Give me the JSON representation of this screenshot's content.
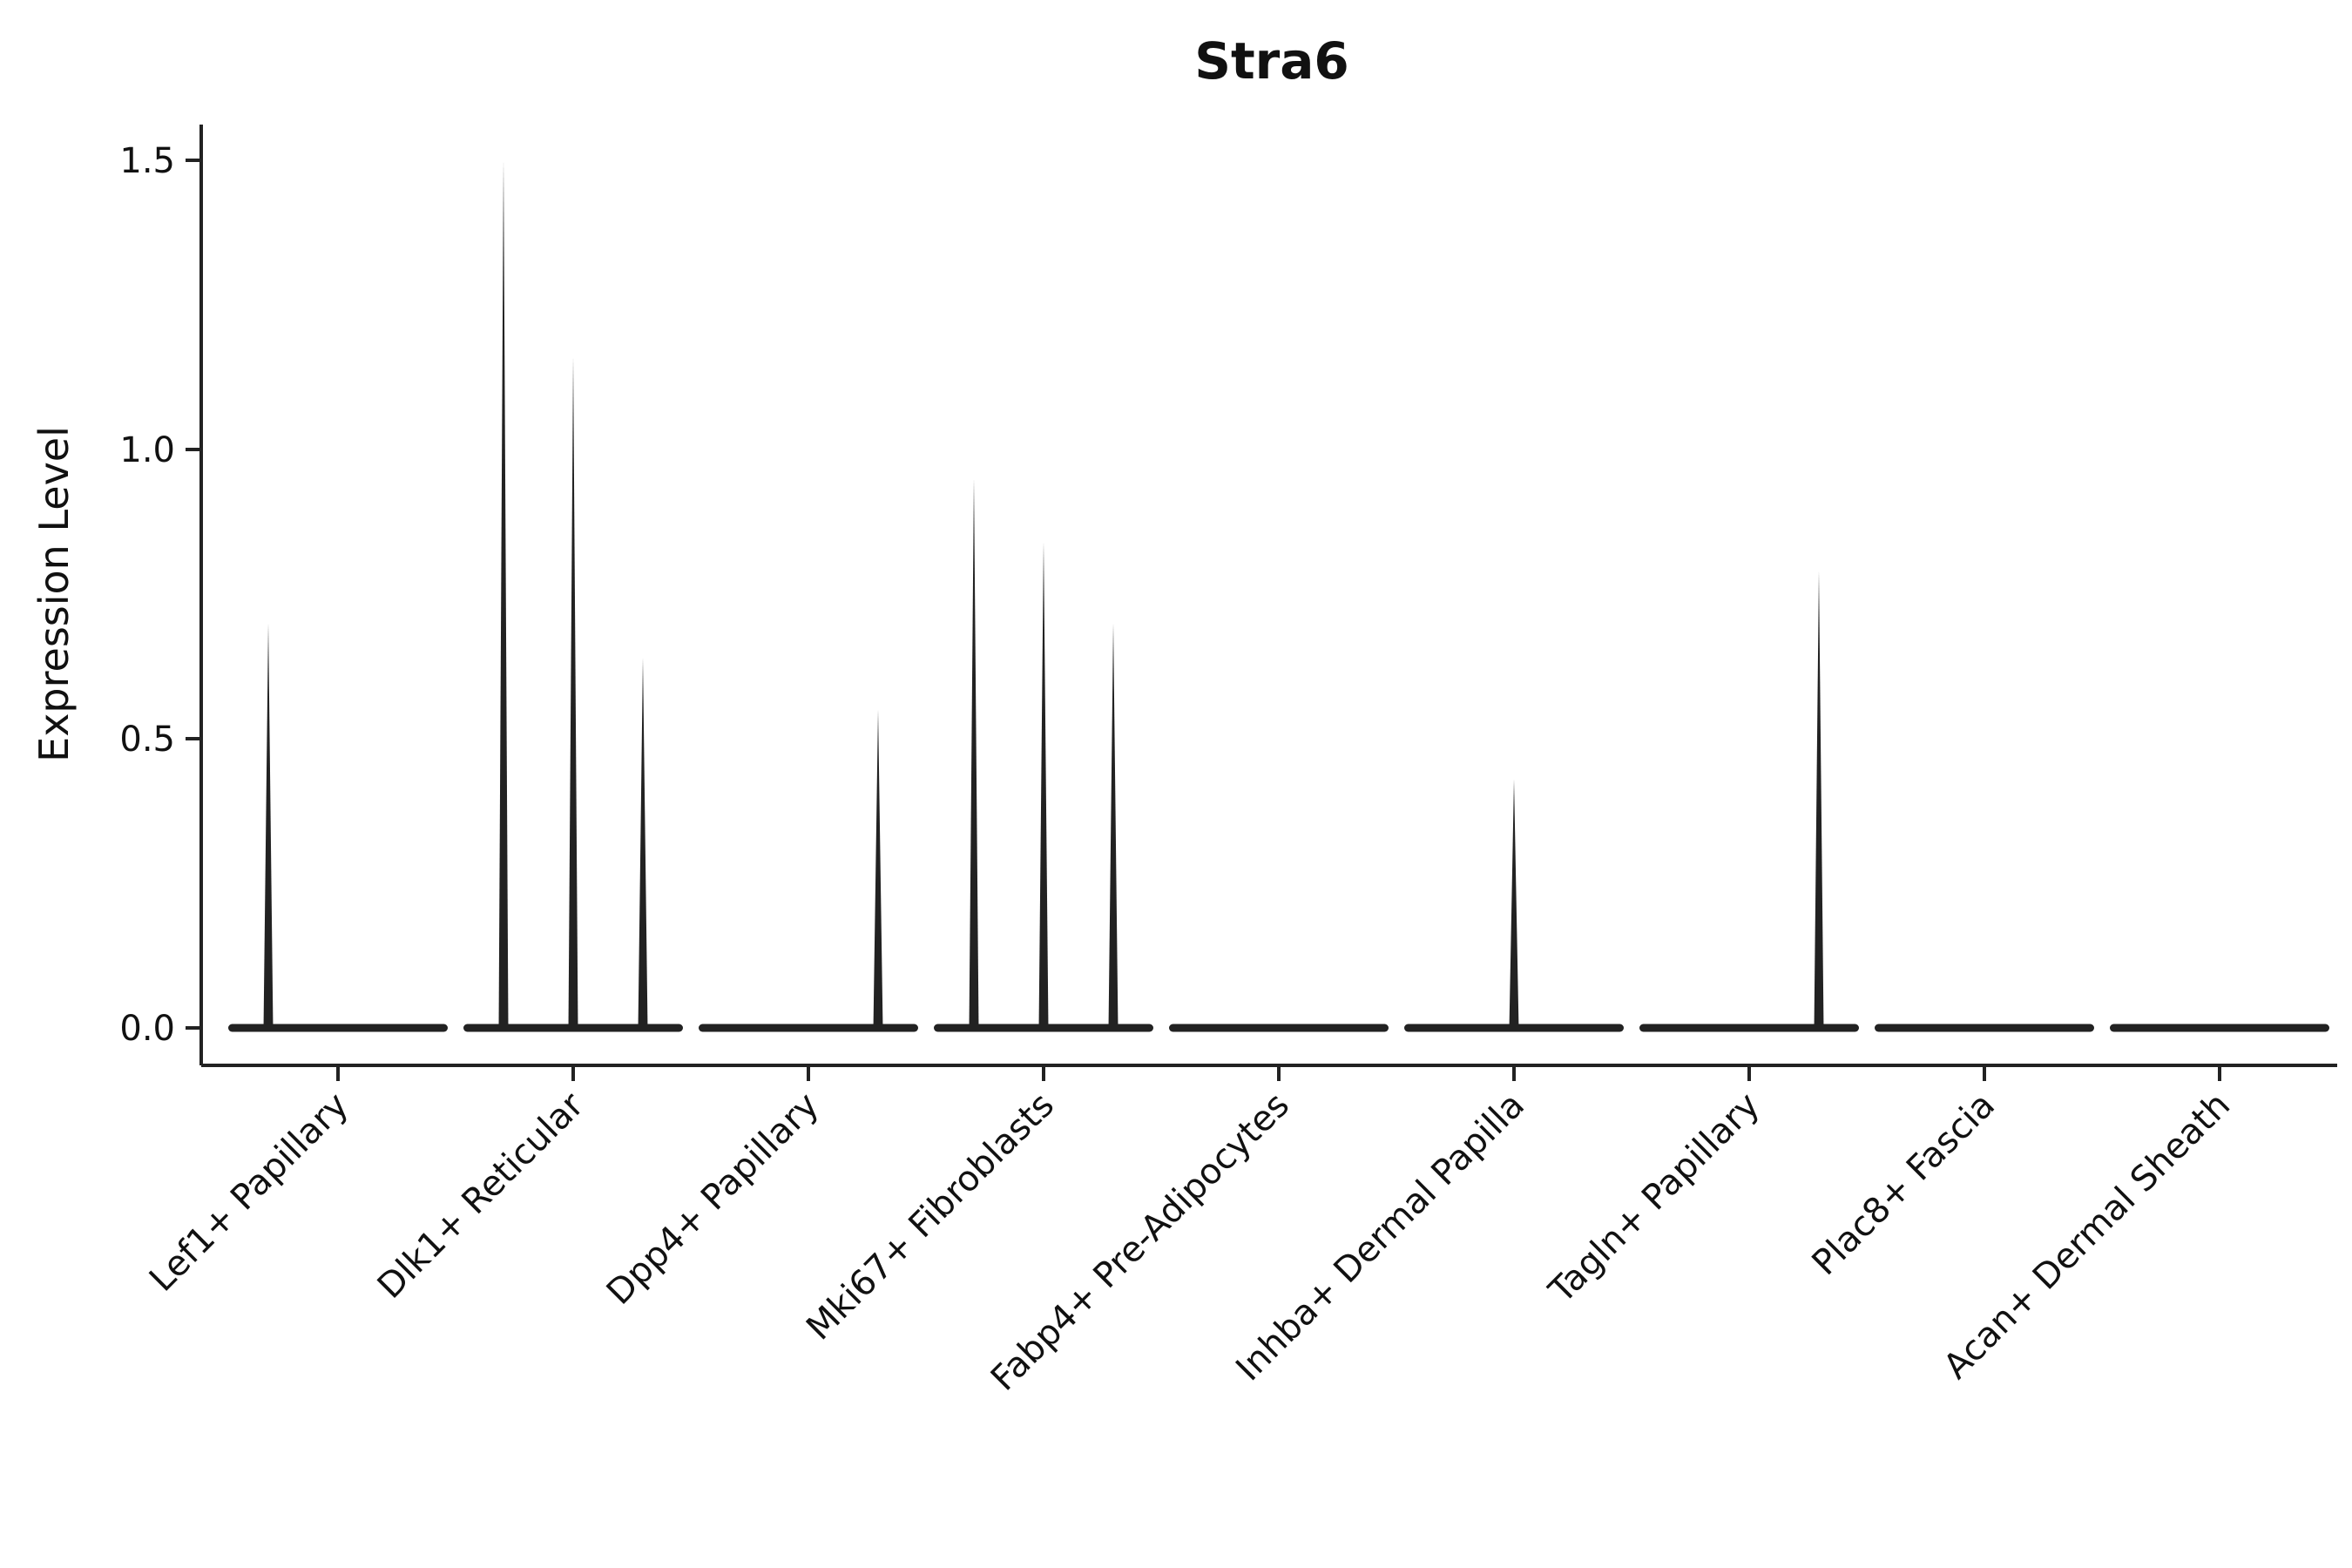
{
  "chart_data": {
    "type": "violin",
    "title": "Stra6",
    "ylabel": "Expression Level",
    "xlabel": "",
    "categories": [
      "Lef1+ Papillary",
      "Dlk1+ Reticular",
      "Dpp4+ Papillary",
      "Mki67+ Fibroblasts",
      "Fabp4+ Pre-Adipocytes",
      "Inhba+ Dermal Papilla",
      "Tagln+ Papillary",
      "Plac8+ Fascia",
      "Acan+ Dermal Sheath"
    ],
    "violins_per_group": 3,
    "description": "Each group shows up to three narrow violins collapsed at expression 0 with thin spikes rising to the maximum expression value; zero spike means a flat violin at 0.",
    "series_max_expression": [
      [
        0.7,
        0,
        0
      ],
      [
        1.5,
        1.16,
        0.64
      ],
      [
        0,
        0,
        0.55
      ],
      [
        0.95,
        0.84,
        0.7
      ],
      [
        0,
        0,
        0
      ],
      [
        0,
        0.43,
        0
      ],
      [
        0,
        0,
        0.79
      ],
      [
        0,
        0,
        0
      ],
      [
        0,
        0,
        0
      ]
    ],
    "baseline_value": 0.0,
    "yticks": [
      0.0,
      0.5,
      1.0,
      1.5
    ],
    "ytick_labels": [
      "0.0",
      "0.5",
      "1.0",
      "1.5"
    ],
    "ylim": [
      0,
      1.55
    ],
    "grid": false,
    "legend_position": "none",
    "ink_color": "#222222",
    "background_color": "#ffffff",
    "x_tick_rotation_deg": 45
  }
}
